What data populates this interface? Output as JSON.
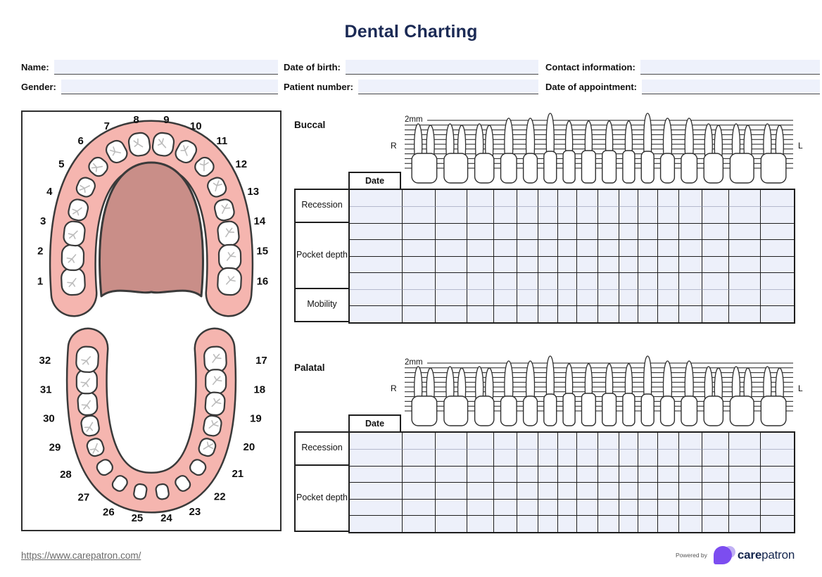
{
  "title": "Dental Charting",
  "patient_fields": [
    {
      "label": "Name:",
      "value": ""
    },
    {
      "label": "Date of birth:",
      "value": ""
    },
    {
      "label": "Contact information:",
      "value": ""
    },
    {
      "label": "Gender:",
      "value": ""
    },
    {
      "label": "Patient number:",
      "value": ""
    },
    {
      "label": "Date of appointment:",
      "value": ""
    }
  ],
  "dental_diagram": {
    "upper_arch_teeth": [
      "1",
      "2",
      "3",
      "4",
      "5",
      "6",
      "7",
      "8",
      "9",
      "10",
      "11",
      "12",
      "13",
      "14",
      "15",
      "16"
    ],
    "lower_arch_teeth": [
      "17",
      "18",
      "19",
      "20",
      "21",
      "22",
      "23",
      "24",
      "25",
      "26",
      "27",
      "28",
      "29",
      "30",
      "31",
      "32"
    ]
  },
  "sections": [
    {
      "name": "Buccal",
      "ruler_label": "2mm",
      "side_left": "R",
      "side_right": "L",
      "date_header": "Date",
      "row_groups": [
        {
          "label": "Recession",
          "rows": 2
        },
        {
          "label": "Pocket depth",
          "rows": 4
        },
        {
          "label": "Mobility",
          "rows": 2
        }
      ],
      "tooth_columns": 16
    },
    {
      "name": "Palatal",
      "ruler_label": "2mm",
      "side_left": "R",
      "side_right": "L",
      "date_header": "Date",
      "row_groups": [
        {
          "label": "Recession",
          "rows": 2
        },
        {
          "label": "Pocket depth",
          "rows": 4
        }
      ],
      "tooth_columns": 16
    }
  ],
  "footer": {
    "link": "https://www.carepatron.com/",
    "powered_by_label": "Powered by",
    "brand_bold": "care",
    "brand_regular": "patron"
  },
  "colors": {
    "title_navy": "#1b2a55",
    "field_bg": "#EEF1FB",
    "cell_bg": "#EDF0FA",
    "grid_border_dark": "#1e1e1e",
    "grid_border_light": "#b4b9cc",
    "gum_pink": "#F5B5AF",
    "palate_mauve": "#C98E88",
    "outline_dark": "#3a3a3a",
    "tooth_crack_gray": "#bcbcbc",
    "logo_purple": "#7C4DF0",
    "logo_purple_light": "#B6A3F2",
    "brand_navy": "#14264e",
    "link_gray": "#6a6a6a"
  }
}
